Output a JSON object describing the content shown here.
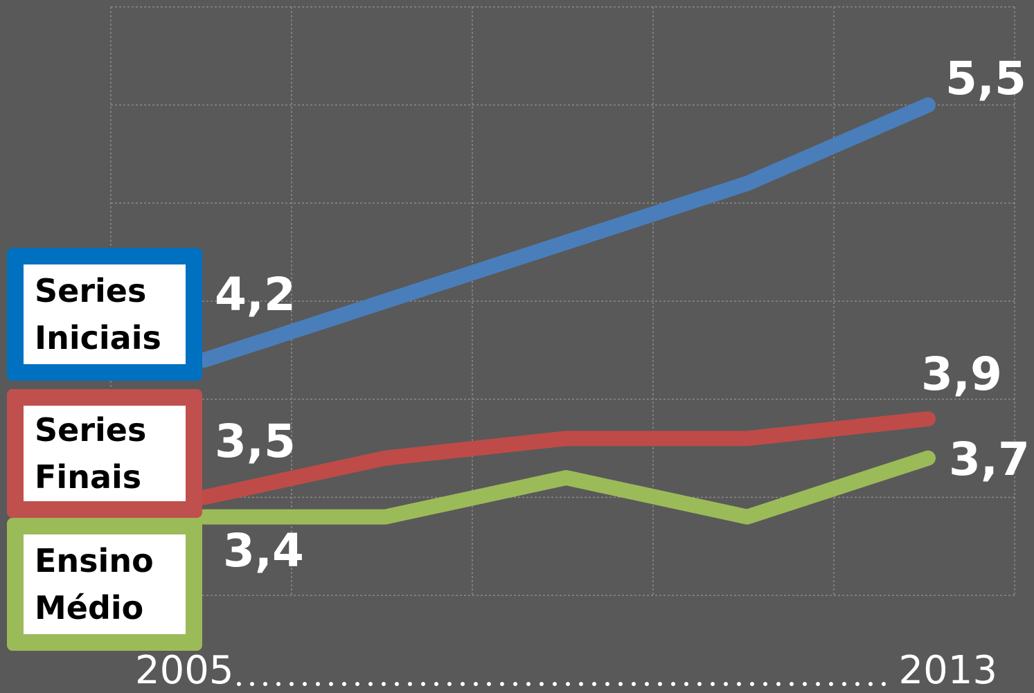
{
  "chart_data": {
    "type": "line",
    "categories": [
      "2005",
      null,
      null,
      null,
      "2013"
    ],
    "series": [
      {
        "name": "Series Iniciais",
        "color": "#4a7ebb",
        "border": "#0070c0",
        "values": [
          4.2,
          4.5,
          4.8,
          5.1,
          5.5
        ],
        "value_labels": [
          "4,2",
          null,
          null,
          null,
          "5,5"
        ]
      },
      {
        "name": "Series Finais",
        "color": "#be4b48",
        "border": "#c0504d",
        "values": [
          3.5,
          3.7,
          3.8,
          3.8,
          3.9
        ],
        "value_labels": [
          "3,5",
          null,
          null,
          null,
          "3,9"
        ]
      },
      {
        "name": "Ensino Médio",
        "color": "#9bbb59",
        "border": "#9bbb59",
        "values": [
          3.4,
          3.4,
          3.6,
          3.4,
          3.7
        ],
        "value_labels": [
          "3,4",
          null,
          null,
          null,
          "3,7"
        ]
      }
    ],
    "ylim": [
      3,
      6
    ],
    "yticks": [
      3,
      3.5,
      4,
      4.5,
      5,
      5.5,
      6
    ],
    "grid": true
  }
}
